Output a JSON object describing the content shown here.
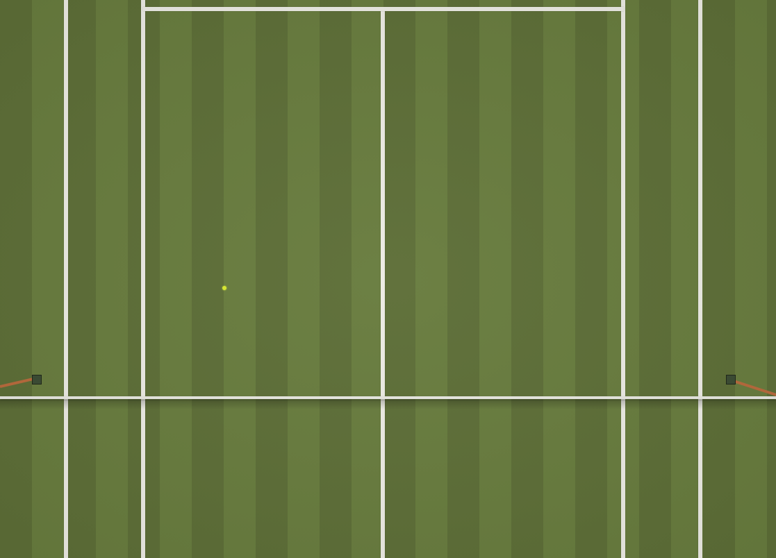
{
  "scene": {
    "type": "tennis-court-top-down",
    "surface": "grass",
    "colors": {
      "grass_dark": "#5d6e37",
      "grass_light": "#687c3e",
      "lines": "#ecebe4",
      "ball": "#d9ea2e",
      "net_strap": "#b86a3c"
    }
  }
}
